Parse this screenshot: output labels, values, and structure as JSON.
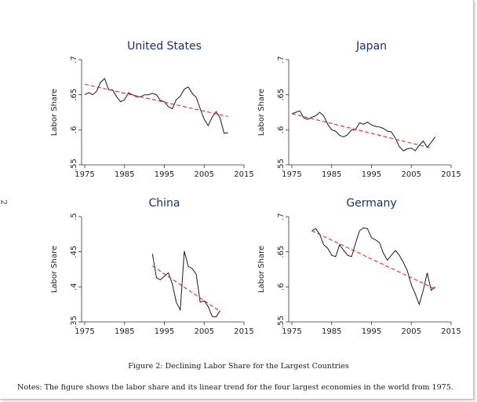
{
  "figure": {
    "caption": "Figure 2: Declining Labor Share for the Largest Countries",
    "notes": "Notes: The figure shows the labor share and its linear trend for the four largest economies in the world from 1975.",
    "margin_mark": "2",
    "colors": {
      "series": "#1a1a1a",
      "trend": "#e0291f",
      "axis": "#333333",
      "title": "#1c2f6b"
    }
  },
  "chart_data": [
    {
      "type": "line",
      "title": "United States",
      "ylabel": "Labor Share",
      "xlabel": "",
      "xlim": [
        1975,
        2015
      ],
      "ylim": [
        0.55,
        0.7
      ],
      "xticks": [
        1975,
        1985,
        1995,
        2005,
        2015
      ],
      "xtick_labels": [
        "1975",
        "1985",
        "1995",
        "2005",
        "2015"
      ],
      "yticks": [
        0.55,
        0.6,
        0.65,
        0.7
      ],
      "ytick_labels": [
        ".55",
        ".6",
        ".65",
        ".7"
      ],
      "series": [
        {
          "name": "Labor Share",
          "x": [
            1975,
            1976,
            1977,
            1978,
            1979,
            1980,
            1981,
            1982,
            1983,
            1984,
            1985,
            1986,
            1987,
            1988,
            1989,
            1990,
            1991,
            1992,
            1993,
            1994,
            1995,
            1996,
            1997,
            1998,
            1999,
            2000,
            2001,
            2002,
            2003,
            2004,
            2005,
            2006,
            2007,
            2008,
            2009,
            2010,
            2011
          ],
          "y": [
            0.65,
            0.653,
            0.65,
            0.655,
            0.668,
            0.673,
            0.657,
            0.657,
            0.647,
            0.64,
            0.643,
            0.653,
            0.65,
            0.647,
            0.647,
            0.65,
            0.65,
            0.652,
            0.65,
            0.642,
            0.64,
            0.633,
            0.63,
            0.643,
            0.648,
            0.658,
            0.661,
            0.652,
            0.646,
            0.63,
            0.615,
            0.606,
            0.618,
            0.626,
            0.617,
            0.595,
            0.596
          ]
        },
        {
          "name": "Linear trend",
          "x": [
            1975,
            2011
          ],
          "y": [
            0.665,
            0.619
          ]
        }
      ]
    },
    {
      "type": "line",
      "title": "Japan",
      "ylabel": "Labor Share",
      "xlabel": "",
      "xlim": [
        1975,
        2015
      ],
      "ylim": [
        0.55,
        0.7
      ],
      "xticks": [
        1975,
        1985,
        1995,
        2005,
        2015
      ],
      "xtick_labels": [
        "1975",
        "1985",
        "1995",
        "2005",
        "2015"
      ],
      "yticks": [
        0.55,
        0.6,
        0.65,
        0.7
      ],
      "ytick_labels": [
        ".55",
        ".6",
        ".65",
        ".7"
      ],
      "series": [
        {
          "name": "Labor Share",
          "x": [
            1975,
            1976,
            1977,
            1978,
            1979,
            1980,
            1981,
            1982,
            1983,
            1984,
            1985,
            1986,
            1987,
            1988,
            1989,
            1990,
            1991,
            1992,
            1993,
            1994,
            1995,
            1996,
            1997,
            1998,
            1999,
            2000,
            2001,
            2002,
            2003,
            2004,
            2005,
            2006,
            2007,
            2008,
            2009,
            2010,
            2011
          ],
          "y": [
            0.623,
            0.625,
            0.627,
            0.617,
            0.615,
            0.618,
            0.62,
            0.625,
            0.62,
            0.608,
            0.6,
            0.598,
            0.592,
            0.59,
            0.593,
            0.6,
            0.6,
            0.61,
            0.608,
            0.611,
            0.607,
            0.605,
            0.604,
            0.602,
            0.598,
            0.597,
            0.588,
            0.576,
            0.57,
            0.573,
            0.574,
            0.57,
            0.578,
            0.584,
            0.575,
            0.582,
            0.59
          ]
        },
        {
          "name": "Linear trend",
          "x": [
            1975,
            2010
          ],
          "y": [
            0.623,
            0.574
          ]
        }
      ]
    },
    {
      "type": "line",
      "title": "China",
      "ylabel": "Labor Share",
      "xlabel": "",
      "xlim": [
        1975,
        2015
      ],
      "ylim": [
        0.35,
        0.5
      ],
      "xticks": [
        1975,
        1985,
        1995,
        2005,
        2015
      ],
      "xtick_labels": [
        "1975",
        "1985",
        "1995",
        "2005",
        "2015"
      ],
      "yticks": [
        0.35,
        0.4,
        0.45,
        0.5
      ],
      "ytick_labels": [
        ".35",
        ".4",
        ".45",
        ".5"
      ],
      "series": [
        {
          "name": "Labor Share",
          "x": [
            1992,
            1993,
            1994,
            1995,
            1996,
            1997,
            1998,
            1999,
            2000,
            2001,
            2002,
            2003,
            2004,
            2005,
            2006,
            2007,
            2008,
            2009
          ],
          "y": [
            0.447,
            0.413,
            0.41,
            0.415,
            0.42,
            0.404,
            0.378,
            0.367,
            0.451,
            0.429,
            0.426,
            0.418,
            0.378,
            0.38,
            0.372,
            0.358,
            0.357,
            0.366
          ]
        },
        {
          "name": "Linear trend",
          "x": [
            1992,
            2009
          ],
          "y": [
            0.43,
            0.365
          ]
        }
      ]
    },
    {
      "type": "line",
      "title": "Germany",
      "ylabel": "Labor Share",
      "xlabel": "",
      "xlim": [
        1975,
        2015
      ],
      "ylim": [
        0.55,
        0.7
      ],
      "xticks": [
        1975,
        1985,
        1995,
        2005,
        2015
      ],
      "xtick_labels": [
        "1975",
        "1985",
        "1995",
        "2005",
        "2015"
      ],
      "yticks": [
        0.55,
        0.6,
        0.65,
        0.7
      ],
      "ytick_labels": [
        ".55",
        ".6",
        ".65",
        ".7"
      ],
      "series": [
        {
          "name": "Labor Share",
          "x": [
            1980,
            1981,
            1982,
            1983,
            1984,
            1985,
            1986,
            1987,
            1988,
            1989,
            1990,
            1991,
            1992,
            1993,
            1994,
            1995,
            1996,
            1997,
            1998,
            1999,
            2000,
            2001,
            2002,
            2003,
            2004,
            2005,
            2006,
            2007,
            2008,
            2009,
            2010,
            2011
          ],
          "y": [
            0.68,
            0.683,
            0.675,
            0.66,
            0.655,
            0.645,
            0.643,
            0.66,
            0.652,
            0.645,
            0.643,
            0.662,
            0.68,
            0.684,
            0.683,
            0.67,
            0.667,
            0.663,
            0.648,
            0.638,
            0.645,
            0.652,
            0.645,
            0.635,
            0.623,
            0.603,
            0.59,
            0.575,
            0.595,
            0.62,
            0.595,
            0.6
          ]
        },
        {
          "name": "Linear trend",
          "x": [
            1980,
            2011
          ],
          "y": [
            0.68,
            0.597
          ]
        }
      ]
    }
  ]
}
